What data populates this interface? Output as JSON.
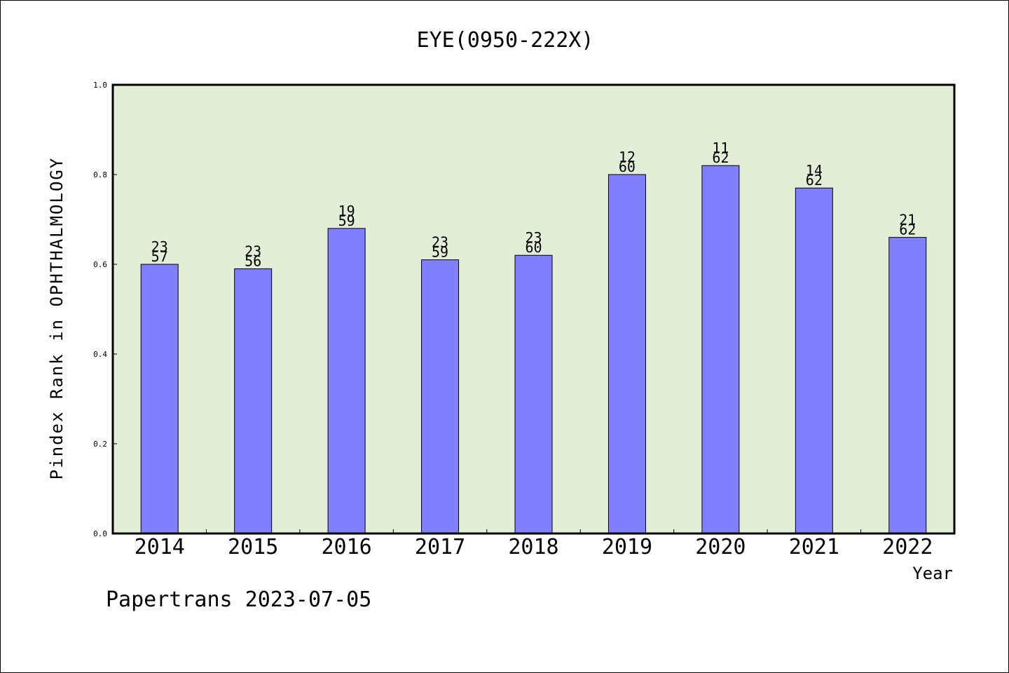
{
  "chart_data": {
    "type": "bar",
    "title": "EYE(0950-222X)",
    "xlabel": "Year",
    "ylabel": "Pindex Rank in OPHTHALMOLOGY",
    "ylim": [
      0,
      1.0
    ],
    "yticks": [
      "0.0",
      "0.2",
      "0.4",
      "0.6",
      "0.8",
      "1.0"
    ],
    "ytick_values": [
      0,
      0.2,
      0.4,
      0.6,
      0.8,
      1.0
    ],
    "categories": [
      "2014",
      "2015",
      "2016",
      "2017",
      "2018",
      "2019",
      "2020",
      "2021",
      "2022"
    ],
    "values": [
      0.6,
      0.59,
      0.68,
      0.61,
      0.62,
      0.8,
      0.82,
      0.77,
      0.66
    ],
    "rank_labels": [
      "23",
      "23",
      "19",
      "23",
      "23",
      "12",
      "11",
      "14",
      "21"
    ],
    "total_labels": [
      "57",
      "56",
      "59",
      "59",
      "60",
      "60",
      "62",
      "62",
      "62"
    ],
    "grid": false,
    "legend": "none",
    "colors": {
      "bar": "#8080ff",
      "plot_background": "#e2efd6",
      "axis": "#000000"
    }
  },
  "footer": {
    "credit": "Papertrans 2023-07-05"
  }
}
